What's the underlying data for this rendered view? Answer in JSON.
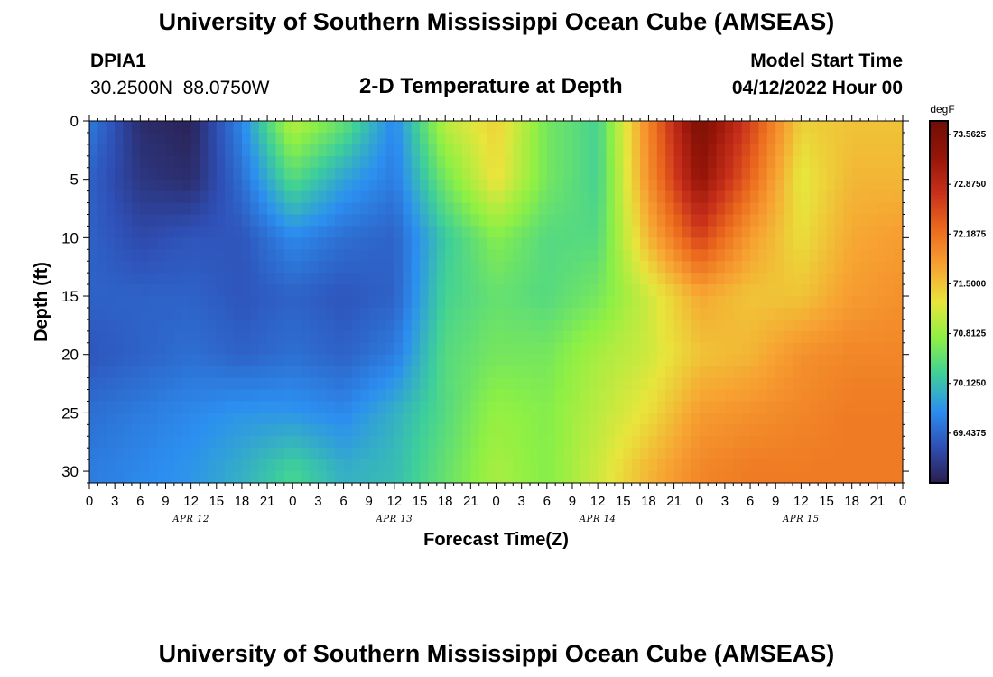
{
  "page": {
    "title": "University of Southern Mississippi Ocean Cube (AMSEAS)",
    "title_repeat": "University of Southern Mississippi Ocean Cube (AMSEAS)",
    "station_id": "DPIA1",
    "station_coords": "30.2500N  88.0750W",
    "plot_title": "2-D Temperature at Depth",
    "model_start_label": "Model Start Time",
    "model_start_value": "04/12/2022 Hour 00"
  },
  "chart_data": {
    "type": "heatmap",
    "title": "2-D Temperature at Depth",
    "xlabel": "Forecast Time(Z)",
    "ylabel": "Depth (ft)",
    "x_ticks": [
      "0",
      "3",
      "6",
      "9",
      "12",
      "15",
      "18",
      "21",
      "0",
      "3",
      "6",
      "9",
      "12",
      "15",
      "18",
      "21",
      "0",
      "3",
      "6",
      "9",
      "12",
      "15",
      "18",
      "21",
      "0",
      "3",
      "6",
      "9",
      "12",
      "15",
      "18",
      "21",
      "0"
    ],
    "x_range_hours": [
      0,
      96
    ],
    "x_date_labels": [
      {
        "label": "APR 12",
        "hour": 12
      },
      {
        "label": "APR 13",
        "hour": 36
      },
      {
        "label": "APR 14",
        "hour": 60
      },
      {
        "label": "APR 15",
        "hour": 84
      }
    ],
    "y_ticks": [
      "0",
      "5",
      "10",
      "15",
      "20",
      "25",
      "30"
    ],
    "y_range_ft": [
      0,
      31
    ],
    "colorbar": {
      "units": "degF",
      "labels": [
        "73.5625",
        "72.8750",
        "72.1875",
        "71.5000",
        "70.8125",
        "70.1250",
        "69.4375"
      ],
      "range": [
        68.75,
        73.75
      ],
      "colors": [
        "#2a1e4d",
        "#2f4fb5",
        "#2c8ff0",
        "#3ecf9a",
        "#8df044",
        "#e8e53c",
        "#f7a232",
        "#ec6a1e",
        "#c8301a",
        "#961509",
        "#6e0e05"
      ]
    },
    "grid": {
      "depths_ft": [
        0,
        5,
        10,
        15,
        20,
        25,
        30
      ],
      "hours": [
        0,
        6,
        12,
        18,
        24,
        30,
        36,
        42,
        48,
        54,
        60,
        66,
        72,
        78,
        84,
        90,
        96
      ],
      "values_degF": [
        [
          69.6,
          68.9,
          68.8,
          69.7,
          71.0,
          70.5,
          69.7,
          71.0,
          71.4,
          70.6,
          70.3,
          72.0,
          73.6,
          72.6,
          71.4,
          71.5,
          71.5
        ],
        [
          69.4,
          69.0,
          68.9,
          69.5,
          70.4,
          69.9,
          69.6,
          70.6,
          71.3,
          70.6,
          70.3,
          71.9,
          73.3,
          72.3,
          71.2,
          71.6,
          71.6
        ],
        [
          69.4,
          69.2,
          69.3,
          69.3,
          69.7,
          69.5,
          69.4,
          70.2,
          70.7,
          70.4,
          70.4,
          71.6,
          72.6,
          71.8,
          71.3,
          71.7,
          71.8
        ],
        [
          69.4,
          69.4,
          69.4,
          69.3,
          69.4,
          69.3,
          69.4,
          70.3,
          70.5,
          70.4,
          70.6,
          71.1,
          71.7,
          71.5,
          71.5,
          71.8,
          71.9
        ],
        [
          69.3,
          69.4,
          69.5,
          69.4,
          69.5,
          69.4,
          69.6,
          70.4,
          70.6,
          70.6,
          70.9,
          71.1,
          71.5,
          71.6,
          71.9,
          72.0,
          72.0
        ],
        [
          69.5,
          69.6,
          69.7,
          69.8,
          69.8,
          69.7,
          70.0,
          70.4,
          70.8,
          70.7,
          71.0,
          71.3,
          71.8,
          71.9,
          72.0,
          72.1,
          72.1
        ],
        [
          69.6,
          69.7,
          69.8,
          70.0,
          70.3,
          70.0,
          70.1,
          70.5,
          70.9,
          70.7,
          71.1,
          71.6,
          72.0,
          72.1,
          72.1,
          72.1,
          72.1
        ]
      ]
    }
  }
}
